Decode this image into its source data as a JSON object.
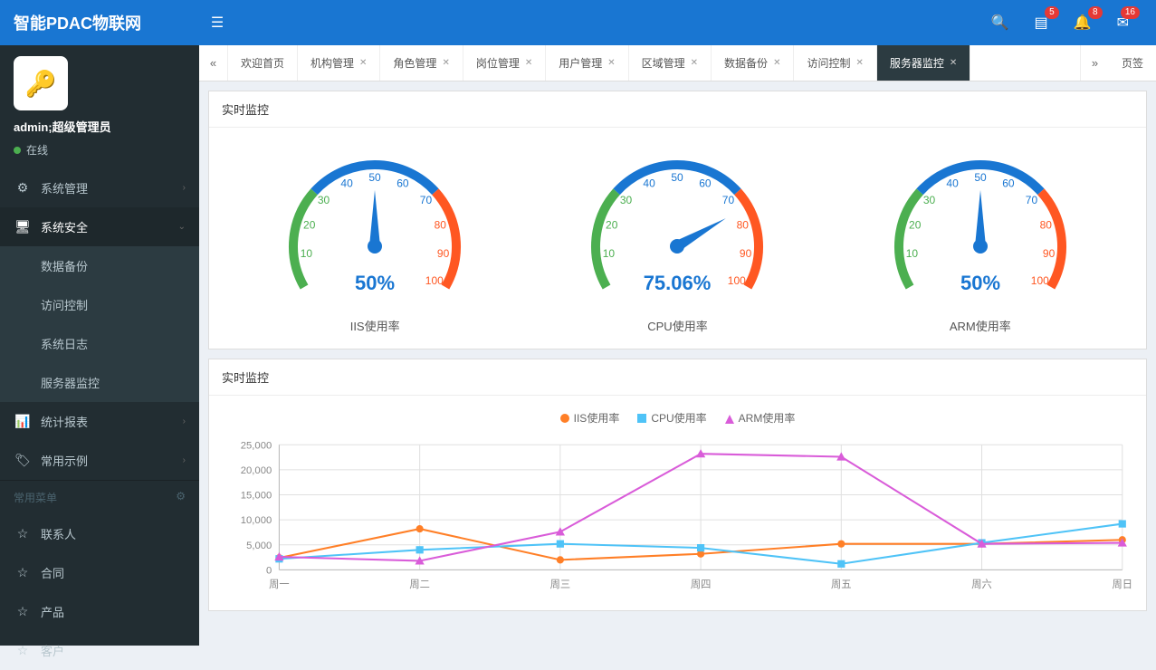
{
  "header": {
    "logo": "智能PDAC物联网",
    "badges": {
      "list": "5",
      "bell": "8",
      "mail": "16"
    }
  },
  "user": {
    "name": "admin;超级管理员",
    "status": "在线"
  },
  "nav": {
    "sys_mgmt": "系统管理",
    "sys_sec": "系统安全",
    "sub": {
      "backup": "数据备份",
      "access": "访问控制",
      "log": "系统日志",
      "monitor": "服务器监控"
    },
    "report": "统计报表",
    "sample": "常用示例",
    "common_header": "常用菜单",
    "contacts": "联系人",
    "contract": "合同",
    "product": "产品",
    "customer": "客户"
  },
  "tabs": {
    "items": [
      "欢迎首页",
      "机构管理",
      "角色管理",
      "岗位管理",
      "用户管理",
      "区域管理",
      "数据备份",
      "访问控制",
      "服务器监控"
    ],
    "active_index": 8,
    "more": "页签"
  },
  "panel1": {
    "title": "实时监控",
    "gauges": [
      {
        "label": "IIS使用率",
        "value": 50,
        "display": "50%"
      },
      {
        "label": "CPU使用率",
        "value": 75.06,
        "display": "75.06%"
      },
      {
        "label": "ARM使用率",
        "value": 50,
        "display": "50%"
      }
    ],
    "gauge_style": {
      "arc_green": "#4caf50",
      "arc_blue": "#1976d2",
      "arc_orange": "#ff5722",
      "tick_low": "#4caf50",
      "tick_mid": "#1976d2",
      "tick_high": "#ff5722",
      "ticks": [
        10,
        20,
        30,
        40,
        50,
        60,
        70,
        80,
        90,
        100
      ],
      "needle_color": "#1976d2",
      "arc_width": 10
    }
  },
  "panel2": {
    "title": "实时监控",
    "legend": {
      "iis": "IIS使用率",
      "cpu": "CPU使用率",
      "arm": "ARM使用率"
    },
    "chart": {
      "type": "line",
      "categories": [
        "周一",
        "周二",
        "周三",
        "周四",
        "周五",
        "周六",
        "周日"
      ],
      "ylim": [
        0,
        25000
      ],
      "ystep": 5000,
      "series": {
        "iis": {
          "color": "#ff7f27",
          "marker": "circle",
          "values": [
            2400,
            8200,
            2000,
            3200,
            5200,
            5200,
            6000
          ]
        },
        "cpu": {
          "color": "#4fc3f7",
          "marker": "square",
          "values": [
            2200,
            4000,
            5200,
            4400,
            1200,
            5400,
            9200
          ]
        },
        "arm": {
          "color": "#d95cd9",
          "marker": "triangle",
          "values": [
            2600,
            1800,
            7600,
            23200,
            22600,
            5200,
            5400
          ]
        }
      },
      "grid_color": "#e0e0e0",
      "axis_color": "#bbb",
      "bg": "#ffffff"
    }
  }
}
